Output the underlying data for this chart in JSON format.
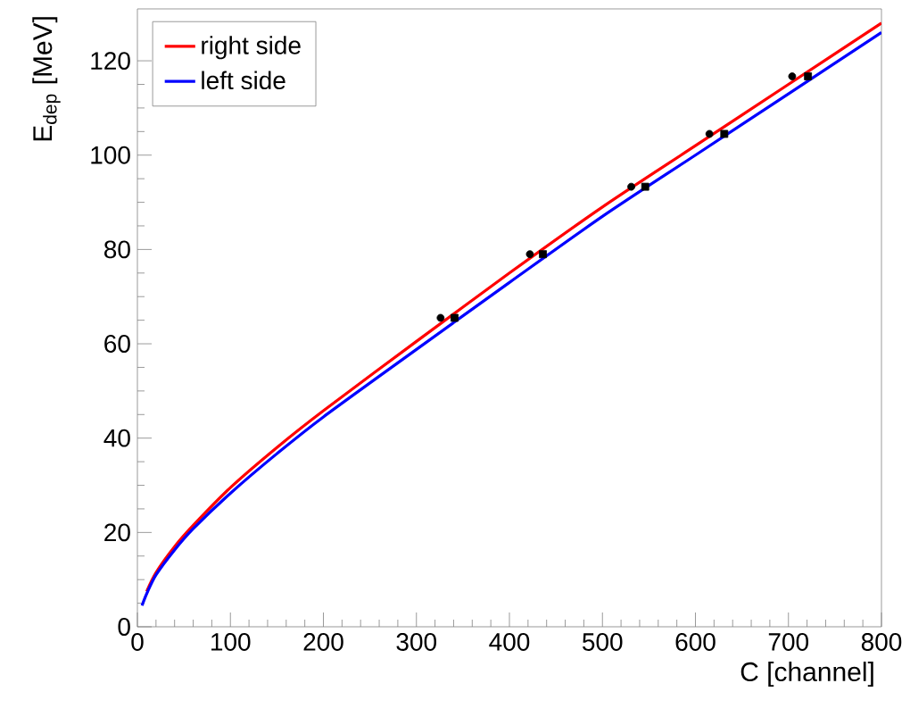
{
  "chart_data": {
    "type": "line",
    "xlabel": "C [channel]",
    "ylabel": "E$_{dep}$ [MeV]",
    "xlim": [
      0,
      800
    ],
    "ylim": [
      0,
      131
    ],
    "xticks": [
      0,
      100,
      200,
      300,
      400,
      500,
      600,
      700,
      800
    ],
    "yticks": [
      0,
      20,
      40,
      60,
      80,
      100,
      120
    ],
    "grid": false,
    "legend": "top left",
    "marker": "none",
    "line_style": "solid",
    "series": [
      {
        "name": "right side",
        "color": "#ff0000",
        "x": [
          10,
          20,
          40,
          60,
          100,
          150,
          200,
          300,
          400,
          500,
          600,
          700,
          800
        ],
        "values": [
          7.5,
          11.5,
          17,
          21.5,
          29.5,
          38,
          45.8,
          60.5,
          75,
          89,
          102,
          115,
          128
        ]
      },
      {
        "name": "left side",
        "color": "#0000ff",
        "x": [
          5,
          10,
          20,
          40,
          60,
          100,
          150,
          200,
          300,
          400,
          500,
          600,
          700,
          800
        ],
        "values": [
          4.5,
          7,
          11,
          16.3,
          20.8,
          28.3,
          36.7,
          44.5,
          58.8,
          73,
          87,
          100,
          113,
          126
        ]
      },
      {
        "type": "scatter",
        "marker": "circle",
        "color": "#000000",
        "x": [
          326,
          422,
          531,
          615,
          704
        ],
        "values": [
          65.5,
          79,
          93.3,
          104.5,
          116.7
        ]
      },
      {
        "type": "scatter",
        "marker": "square",
        "color": "#000000",
        "x": [
          341,
          436,
          546,
          631,
          721
        ],
        "values": [
          65.5,
          79,
          93.3,
          104.5,
          116.7
        ]
      }
    ]
  }
}
